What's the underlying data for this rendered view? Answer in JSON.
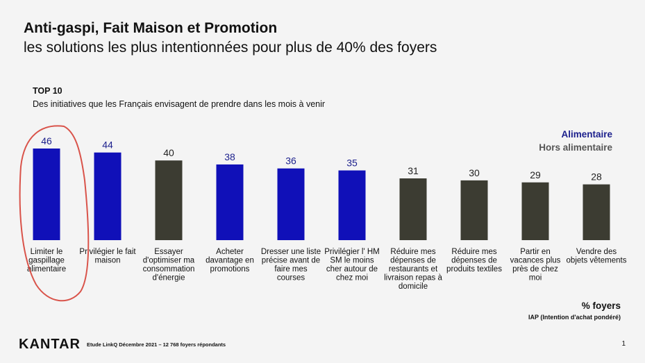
{
  "header": {
    "title": "Anti-gaspi, Fait Maison et Promotion",
    "subtitle": "les solutions les plus intentionnées pour plus de 40% des foyers"
  },
  "intro": {
    "top_label": "TOP 10",
    "description": "Des initiatives que les Français envisagent de prendre dans les mois à venir"
  },
  "colors": {
    "alimentaire": "#1010b8",
    "hors_alimentaire": "#3c3c32",
    "annotation": "#d9534a"
  },
  "chart_data": {
    "type": "bar",
    "categories": [
      [
        "Limiter le",
        "gaspillage",
        "alimentaire"
      ],
      [
        "Privilégier le fait",
        "maison"
      ],
      [
        "Essayer",
        "d'optimiser ma",
        "consommation",
        "d'énergie"
      ],
      [
        "Acheter",
        "davantage en",
        "promotions"
      ],
      [
        "Dresser une liste",
        "précise avant de",
        "faire mes",
        "courses"
      ],
      [
        "Privilégier l' HM",
        "SM le moins",
        "cher autour de",
        "chez moi"
      ],
      [
        "Réduire mes",
        "dépenses de",
        "restaurants et",
        "livraison repas à",
        "domicile"
      ],
      [
        "Réduire mes",
        "dépenses de",
        "produits textiles"
      ],
      [
        "Partir en",
        "vacances plus",
        "près de chez",
        "moi"
      ],
      [
        "Vendre des",
        "objets vêtements"
      ]
    ],
    "values": [
      46,
      44,
      40,
      38,
      36,
      35,
      31,
      30,
      29,
      28
    ],
    "groups": [
      "Alimentaire",
      "Alimentaire",
      "Hors alimentaire",
      "Alimentaire",
      "Alimentaire",
      "Alimentaire",
      "Hors alimentaire",
      "Hors alimentaire",
      "Hors alimentaire",
      "Hors alimentaire"
    ],
    "legend": [
      "Alimentaire",
      "Hors alimentaire"
    ],
    "legend_position": "top-right",
    "highlighted_category": 0,
    "unit_label": "% foyers",
    "unit_note": "IAP (Intention d'achat pondéré)"
  },
  "footer": {
    "brand": "KANTAR",
    "source": "Etude LinkQ Décembre 2021 – 12 768 foyers répondants",
    "page_number": "1"
  }
}
